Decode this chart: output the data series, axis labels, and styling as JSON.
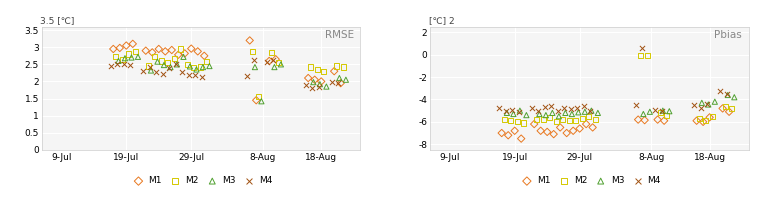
{
  "rmse": {
    "title": "RMSE",
    "ylabel_top": "3.5 [℃]",
    "ylim": [
      0,
      3.6
    ],
    "yticks": [
      0,
      0.5,
      1.0,
      1.5,
      2.0,
      2.5,
      3.0,
      3.5
    ],
    "ytick_labels": [
      "0",
      "0.5",
      "1",
      "1.5",
      "2",
      "2.5",
      "3",
      "3.5"
    ],
    "xtick_labels": [
      "9-Jul",
      "19-Jul",
      "29-Jul",
      "8-Aug",
      "18-Aug"
    ],
    "xtick_pos": [
      0,
      10,
      20,
      31,
      40
    ],
    "xlim": [
      -3,
      46
    ],
    "M1": [
      2.95,
      2.98,
      3.05,
      3.1,
      2.9,
      2.85,
      2.95,
      2.88,
      2.92,
      2.78,
      2.82,
      2.96,
      2.88,
      2.75,
      3.2,
      1.45,
      2.6,
      2.65,
      2.1,
      2.05,
      2.0,
      2.3,
      1.95
    ],
    "M2": [
      2.72,
      2.65,
      2.8,
      2.88,
      2.45,
      2.72,
      2.6,
      2.55,
      2.68,
      2.95,
      2.5,
      2.4,
      2.42,
      2.58,
      2.88,
      1.55,
      2.85,
      2.55,
      2.42,
      2.35,
      2.3,
      2.45,
      2.42
    ],
    "M3": [
      2.6,
      2.68,
      2.7,
      2.72,
      2.32,
      2.58,
      2.48,
      2.42,
      2.5,
      2.72,
      2.44,
      2.35,
      2.42,
      2.45,
      2.42,
      1.42,
      2.42,
      2.5,
      1.98,
      1.92,
      1.85,
      2.1,
      2.05
    ],
    "M4": [
      2.45,
      2.52,
      2.5,
      2.48,
      2.32,
      2.42,
      2.28,
      2.22,
      2.38,
      2.52,
      2.28,
      2.18,
      2.18,
      2.12,
      2.15,
      2.62,
      2.58,
      2.62,
      1.9,
      1.82,
      1.85,
      1.98,
      1.95
    ],
    "M1_x": [
      8,
      9,
      10,
      11,
      13,
      14,
      15,
      16,
      17,
      18,
      19,
      20,
      21,
      22,
      29,
      30,
      32,
      33,
      38,
      39,
      40,
      42,
      43
    ],
    "M2_x": [
      8.4,
      9.4,
      10.4,
      11.4,
      13.4,
      14.4,
      15.4,
      16.4,
      17.4,
      18.4,
      19.4,
      20.4,
      21.4,
      22.4,
      29.4,
      30.4,
      32.4,
      33.4,
      38.4,
      39.4,
      40.4,
      42.4,
      43.4
    ],
    "M3_x": [
      8.8,
      9.8,
      10.8,
      11.8,
      13.8,
      14.8,
      15.8,
      16.8,
      17.8,
      18.8,
      19.8,
      20.8,
      21.8,
      22.8,
      29.8,
      30.8,
      32.8,
      33.8,
      38.8,
      39.8,
      40.8,
      42.8,
      43.8
    ],
    "M4_x": [
      7.6,
      8.6,
      9.6,
      10.6,
      12.6,
      13.6,
      14.6,
      15.6,
      16.6,
      17.6,
      18.6,
      19.6,
      20.6,
      21.6,
      28.6,
      29.6,
      31.6,
      32.6,
      37.6,
      38.6,
      39.6,
      41.6,
      42.6
    ]
  },
  "pbias": {
    "title": "Pbias",
    "ylabel_top": "[℃] 2",
    "ylim": [
      -8.5,
      2.5
    ],
    "yticks": [
      -8,
      -6,
      -4,
      -2,
      0,
      2
    ],
    "ytick_labels": [
      "-8",
      "-6",
      "-4",
      "-2",
      "0",
      "2"
    ],
    "xtick_labels": [
      "9-Jul",
      "19-Jul",
      "29-Jul",
      "8-Aug",
      "18-Aug"
    ],
    "xtick_pos": [
      0,
      10,
      20,
      31,
      40
    ],
    "xlim": [
      -3,
      46
    ],
    "M1": [
      -7.0,
      -7.2,
      -6.8,
      -7.5,
      -6.2,
      -6.8,
      -6.9,
      -7.1,
      -6.5,
      -7.0,
      -6.8,
      -6.6,
      -6.2,
      -6.5,
      -5.8,
      -5.85,
      -5.8,
      -5.9,
      -5.9,
      -6.0,
      -5.6,
      -4.8,
      -5.1
    ],
    "M2": [
      -5.8,
      -5.9,
      -6.0,
      -6.1,
      -5.8,
      -5.8,
      -5.6,
      -5.95,
      -5.8,
      -5.9,
      -5.85,
      -5.7,
      -5.5,
      -5.8,
      -0.1,
      -0.05,
      -5.2,
      -5.4,
      -5.7,
      -5.85,
      -5.5,
      -4.6,
      -4.8
    ],
    "M3": [
      -5.2,
      -5.3,
      -5.0,
      -5.4,
      -5.3,
      -5.4,
      -5.2,
      -5.5,
      -5.2,
      -5.3,
      -5.15,
      -5.1,
      -5.0,
      -5.2,
      -5.3,
      -5.1,
      -5.0,
      -5.05,
      -4.3,
      -4.45,
      -4.2,
      -3.6,
      -3.8
    ],
    "M4": [
      -4.8,
      -5.0,
      -4.9,
      -5.1,
      -4.8,
      -5.0,
      -4.7,
      -4.6,
      -5.0,
      -4.8,
      -4.85,
      -4.75,
      -4.6,
      -5.0,
      -4.5,
      0.6,
      -4.9,
      -5.05,
      -4.5,
      -4.8,
      -4.4,
      -3.2,
      -3.5
    ],
    "M1_x": [
      8,
      9,
      10,
      11,
      13,
      14,
      15,
      16,
      17,
      18,
      19,
      20,
      21,
      22,
      29,
      30,
      32,
      33,
      38,
      39,
      40,
      42,
      43
    ],
    "M2_x": [
      8.4,
      9.4,
      10.4,
      11.4,
      13.4,
      14.4,
      15.4,
      16.4,
      17.4,
      18.4,
      19.4,
      20.4,
      21.4,
      22.4,
      29.4,
      30.4,
      32.4,
      33.4,
      38.4,
      39.4,
      40.4,
      42.4,
      43.4
    ],
    "M3_x": [
      8.8,
      9.8,
      10.8,
      11.8,
      13.8,
      14.8,
      15.8,
      16.8,
      17.8,
      18.8,
      19.8,
      20.8,
      21.8,
      22.8,
      29.8,
      30.8,
      32.8,
      33.8,
      38.8,
      39.8,
      40.8,
      42.8,
      43.8
    ],
    "M4_x": [
      7.6,
      8.6,
      9.6,
      10.6,
      12.6,
      13.6,
      14.6,
      15.6,
      16.6,
      17.6,
      18.6,
      19.6,
      20.6,
      21.6,
      28.6,
      29.6,
      31.6,
      32.6,
      37.6,
      38.6,
      39.6,
      41.6,
      42.6
    ]
  },
  "colors": {
    "M1": "#E87820",
    "M2": "#D4C800",
    "M3": "#50A030",
    "M4": "#A05010"
  },
  "plot_bg": "#f5f5f5"
}
